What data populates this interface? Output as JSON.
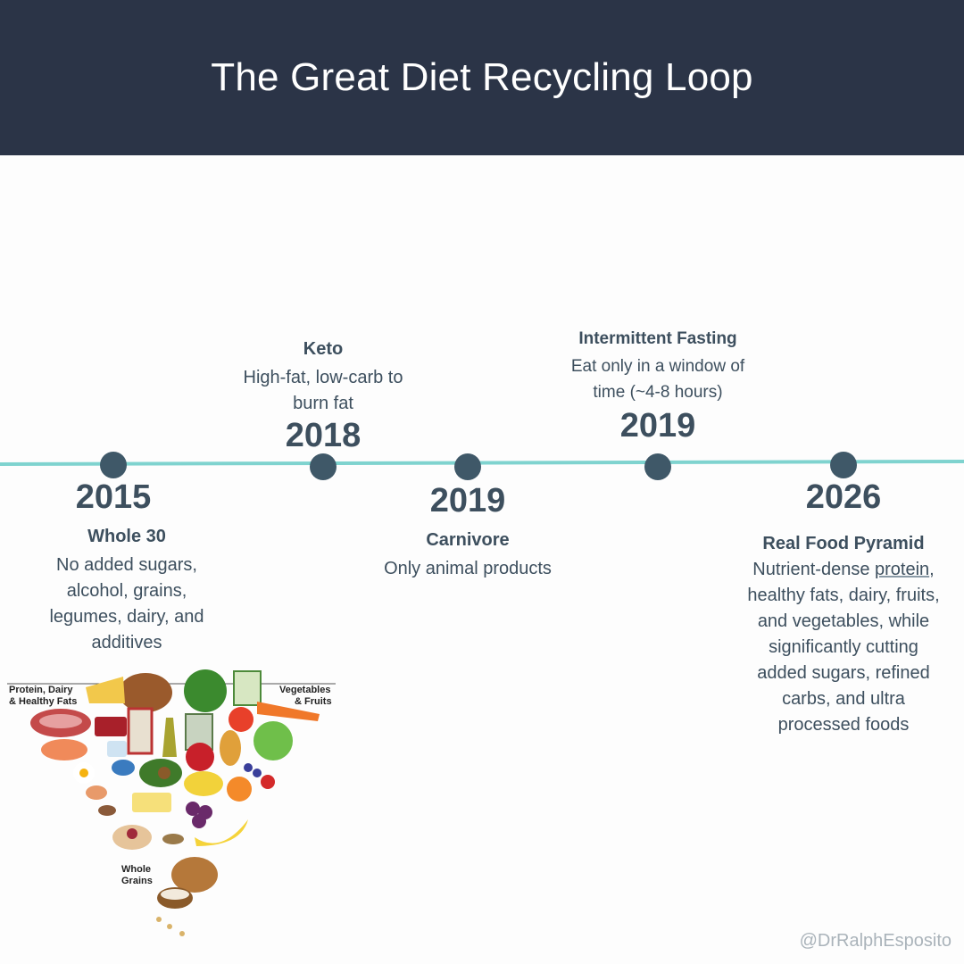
{
  "title": "The Great Diet Recycling Loop",
  "timeline": [
    {
      "year": "2015",
      "name": "Whole 30",
      "description": "No added sugars, alcohol, grains, legumes, dairy, and additives"
    },
    {
      "year": "2018",
      "name": "Keto",
      "description": "High-fat, low-carb to burn fat"
    },
    {
      "year": "2019",
      "name": "Carnivore",
      "description": "Only animal products"
    },
    {
      "year": "2019",
      "name": "Intermittent Fasting",
      "description": "Eat only in a window of time (~4-8 hours)"
    },
    {
      "year": "2026",
      "name": "Real Food Pyramid",
      "description_before": "Nutrient-dense",
      "description_link": "protein",
      "description_after": ", healthy fats, dairy, fruits, and vegetables, while significantly cutting added sugars, refined carbs, and ultra processed foods"
    }
  ],
  "pyramid": {
    "label_left": [
      "Protein, Dairy",
      "& Healthy Fats"
    ],
    "label_right": [
      "Vegetables",
      "& Fruits"
    ],
    "label_bottom": [
      "Whole",
      "Grains"
    ]
  },
  "colors": {
    "header": "#2b3447",
    "line": "#7fd3cf",
    "dot": "#3f5868",
    "text": "#3d4f5e"
  },
  "handle": "@DrRalphEsposito"
}
